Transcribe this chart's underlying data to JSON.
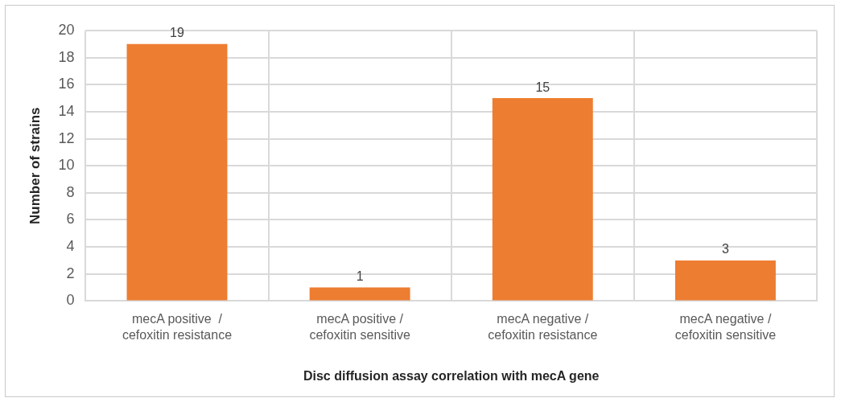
{
  "chart_data": {
    "type": "bar",
    "xlabel": "Disc diffusion assay correlation with mecA gene",
    "ylabel": "Number of strains",
    "categories": [
      "mecA positive  / cefoxitin resistance",
      "mecA positive / cefoxitin sensitive",
      "mecA negative / cefoxitin resistance",
      "mecA negative / cefoxitin sensitive"
    ],
    "values": [
      19,
      1,
      15,
      3
    ],
    "color": "#ed7d31",
    "ylim": [
      0,
      20
    ],
    "yticks": [
      0,
      2,
      4,
      6,
      8,
      10,
      12,
      14,
      16,
      18,
      20
    ],
    "grid": true,
    "data_labels": true,
    "legend": false
  }
}
